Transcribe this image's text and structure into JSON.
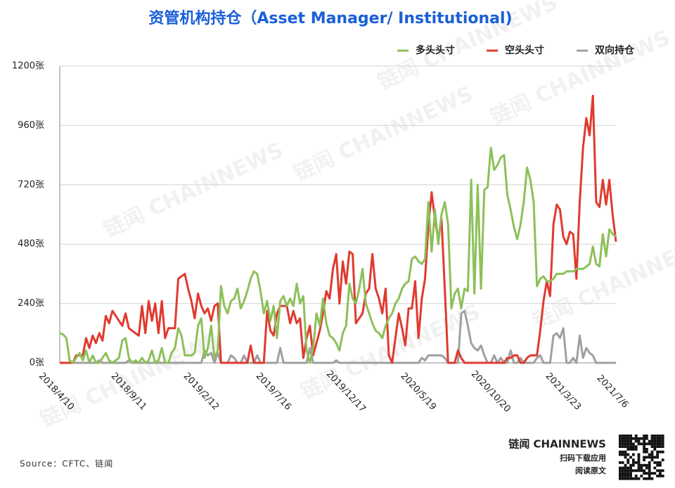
{
  "chart_data": {
    "type": "line",
    "title": "资管机构持仓（Asset Manager/ Institutional)",
    "source": "Source：CFTC、链闻",
    "brand": "链闻 CHAINNEWS",
    "brand_lines": [
      "扫码下载应用",
      "阅读原文"
    ],
    "watermark": "链闻 CHAINNEWS",
    "ylim": [
      0,
      1200
    ],
    "yticks": [
      {
        "value": 0,
        "label": "0张"
      },
      {
        "value": 240,
        "label": "240张"
      },
      {
        "value": 480,
        "label": "480张"
      },
      {
        "value": 720,
        "label": "720张"
      },
      {
        "value": 960,
        "label": "960张"
      },
      {
        "value": 1200,
        "label": "1200张"
      }
    ],
    "grid": true,
    "legend": "top-right",
    "categories": [
      "2018/4/10",
      null,
      null,
      null,
      null,
      null,
      null,
      null,
      null,
      null,
      null,
      null,
      null,
      null,
      null,
      null,
      null,
      null,
      null,
      null,
      null,
      null,
      "2018/9/11",
      null,
      null,
      null,
      null,
      null,
      null,
      null,
      null,
      null,
      null,
      null,
      null,
      null,
      null,
      null,
      null,
      null,
      null,
      null,
      null,
      null,
      "2019/2/12",
      null,
      null,
      null,
      null,
      null,
      null,
      null,
      null,
      null,
      null,
      null,
      null,
      null,
      null,
      null,
      null,
      null,
      null,
      null,
      null,
      null,
      "2019/7/16",
      null,
      null,
      null,
      null,
      null,
      null,
      null,
      null,
      null,
      null,
      null,
      null,
      null,
      null,
      null,
      null,
      null,
      null,
      null,
      null,
      null,
      "2019/12/17",
      null,
      null,
      null,
      null,
      null,
      null,
      null,
      null,
      null,
      null,
      null,
      null,
      null,
      null,
      null,
      null,
      null,
      null,
      null,
      null,
      null,
      "2020/5/19",
      null,
      null,
      null,
      null,
      null,
      null,
      null,
      null,
      null,
      null,
      null,
      null,
      null,
      null,
      null,
      null,
      null,
      null,
      null,
      null,
      null,
      "2020/10/20",
      null,
      null,
      null,
      null,
      null,
      null,
      null,
      null,
      null,
      null,
      null,
      null,
      null,
      null,
      null,
      null,
      null,
      null,
      null,
      null,
      null,
      "2021/3/23",
      null,
      null,
      null,
      null,
      null,
      null,
      null,
      null,
      null,
      null,
      null,
      null,
      null,
      null,
      "2021/7/6"
    ],
    "series": [
      {
        "name": "多头头寸",
        "color": "#8dc05a",
        "values": [
          120,
          115,
          100,
          10,
          0,
          20,
          40,
          10,
          50,
          0,
          30,
          0,
          0,
          20,
          40,
          10,
          0,
          10,
          20,
          90,
          100,
          20,
          0,
          10,
          0,
          20,
          0,
          10,
          50,
          0,
          10,
          60,
          0,
          0,
          40,
          60,
          140,
          110,
          30,
          30,
          30,
          40,
          150,
          180,
          20,
          60,
          150,
          20,
          50,
          310,
          230,
          200,
          250,
          260,
          300,
          220,
          250,
          290,
          340,
          370,
          360,
          290,
          200,
          250,
          170,
          230,
          100,
          250,
          270,
          230,
          260,
          230,
          320,
          240,
          270,
          50,
          0,
          60,
          200,
          150,
          260,
          160,
          110,
          100,
          80,
          50,
          120,
          150,
          320,
          260,
          240,
          300,
          380,
          240,
          200,
          160,
          130,
          120,
          100,
          150,
          180,
          200,
          240,
          260,
          300,
          320,
          330,
          420,
          430,
          410,
          400,
          420,
          650,
          450,
          620,
          480,
          600,
          650,
          560,
          220,
          280,
          300,
          220,
          300,
          290,
          740,
          280,
          720,
          300,
          700,
          710,
          870,
          780,
          800,
          830,
          840,
          680,
          620,
          550,
          500,
          560,
          650,
          790,
          740,
          650,
          310,
          340,
          350,
          330,
          330,
          340,
          360,
          360,
          360,
          370,
          370,
          370,
          380,
          380,
          380,
          390,
          400,
          470,
          400,
          390,
          520,
          430,
          540,
          520,
          510
        ]
      },
      {
        "name": "空头头寸",
        "color": "#e03a2f",
        "values": [
          0,
          0,
          0,
          0,
          0,
          30,
          30,
          30,
          100,
          60,
          110,
          80,
          120,
          90,
          190,
          160,
          210,
          190,
          170,
          150,
          200,
          140,
          130,
          120,
          110,
          230,
          120,
          250,
          170,
          240,
          120,
          250,
          100,
          140,
          140,
          140,
          340,
          350,
          360,
          300,
          250,
          180,
          280,
          230,
          200,
          220,
          170,
          230,
          240,
          0,
          0,
          0,
          0,
          0,
          0,
          0,
          0,
          0,
          70,
          0,
          0,
          0,
          0,
          210,
          130,
          110,
          200,
          230,
          230,
          230,
          160,
          210,
          160,
          180,
          20,
          100,
          150,
          30,
          80,
          130,
          200,
          290,
          260,
          380,
          440,
          240,
          410,
          320,
          450,
          440,
          160,
          180,
          200,
          280,
          300,
          440,
          300,
          260,
          200,
          300,
          30,
          0,
          100,
          200,
          140,
          70,
          220,
          220,
          330,
          100,
          260,
          340,
          550,
          690,
          580,
          500,
          580,
          300,
          0,
          0,
          0,
          50,
          20,
          0,
          0,
          0,
          0,
          0,
          0,
          0,
          0,
          0,
          0,
          0,
          0,
          0,
          20,
          20,
          30,
          30,
          0,
          0,
          20,
          30,
          30,
          30,
          130,
          250,
          330,
          270,
          560,
          640,
          620,
          510,
          480,
          530,
          520,
          340,
          650,
          870,
          990,
          920,
          1080,
          650,
          630,
          740,
          640,
          740,
          600,
          490
        ]
      },
      {
        "name": "双向持仓",
        "color": "#a0a0a0",
        "values": [
          0,
          0,
          0,
          0,
          0,
          0,
          0,
          0,
          0,
          0,
          0,
          0,
          10,
          0,
          0,
          0,
          0,
          0,
          0,
          0,
          0,
          10,
          0,
          0,
          0,
          0,
          0,
          0,
          0,
          0,
          0,
          0,
          0,
          0,
          0,
          0,
          0,
          0,
          0,
          0,
          0,
          0,
          0,
          0,
          50,
          30,
          40,
          0,
          40,
          0,
          0,
          0,
          30,
          20,
          0,
          0,
          30,
          0,
          0,
          0,
          30,
          0,
          0,
          0,
          0,
          0,
          0,
          60,
          0,
          0,
          0,
          0,
          0,
          0,
          0,
          0,
          60,
          0,
          0,
          0,
          0,
          0,
          0,
          0,
          10,
          0,
          0,
          0,
          0,
          0,
          0,
          0,
          0,
          0,
          0,
          0,
          0,
          0,
          0,
          0,
          0,
          0,
          0,
          0,
          0,
          0,
          0,
          0,
          0,
          0,
          20,
          10,
          30,
          30,
          30,
          30,
          30,
          20,
          0,
          0,
          0,
          0,
          200,
          210,
          150,
          80,
          60,
          50,
          70,
          30,
          0,
          0,
          30,
          0,
          20,
          0,
          0,
          50,
          0,
          0,
          20,
          0,
          0,
          0,
          0,
          20,
          30,
          0,
          0,
          0,
          110,
          120,
          100,
          140,
          0,
          0,
          20,
          0,
          110,
          20,
          60,
          40,
          30,
          0,
          0,
          0,
          0,
          0,
          0,
          0
        ]
      }
    ]
  }
}
